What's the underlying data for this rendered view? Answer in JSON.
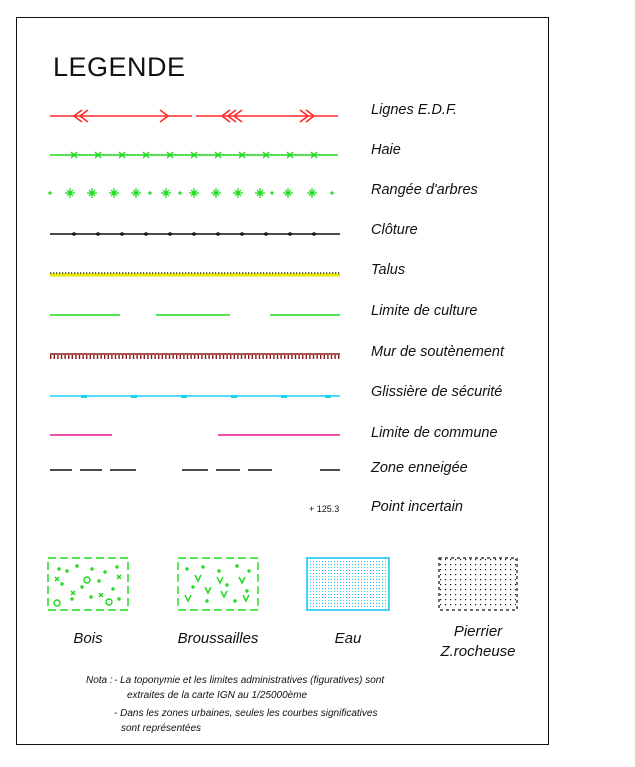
{
  "title": "LEGENDE",
  "legend": [
    {
      "label": "Lignes E.D.F.",
      "symbol": "edf-line",
      "color": "#ff2a2a"
    },
    {
      "label": "Haie",
      "symbol": "hedge",
      "color": "#19d919"
    },
    {
      "label": "Rangée d'arbres",
      "symbol": "tree-row",
      "color": "#19d919"
    },
    {
      "label": "Clôture",
      "symbol": "fence",
      "color": "#111111"
    },
    {
      "label": "Talus",
      "symbol": "embankment",
      "color": "#e8e800"
    },
    {
      "label": "Limite de culture",
      "symbol": "crop-limit",
      "color": "#19d919"
    },
    {
      "label": "Mur de soutènement",
      "symbol": "retaining-wall",
      "color": "#8a1a1a"
    },
    {
      "label": "Glissière de sécurité",
      "symbol": "guardrail",
      "color": "#19d4ee"
    },
    {
      "label": "Limite de commune",
      "symbol": "commune-limit",
      "color": "#ee1a8a"
    },
    {
      "label": "Zone enneigée",
      "symbol": "snow-zone",
      "color": "#111111"
    },
    {
      "label": "Point incertain",
      "symbol": "uncertain-point",
      "value": "+ 125.3"
    }
  ],
  "areas": [
    {
      "label": "Bois",
      "pattern": "wood",
      "color": "#19d919"
    },
    {
      "label": "Broussailles",
      "pattern": "scrub",
      "color": "#19d919"
    },
    {
      "label": "Eau",
      "pattern": "water",
      "color": "#19c8ee"
    },
    {
      "label": "Pierrier Z.rocheuse",
      "pattern": "scree",
      "color": "#111111"
    }
  ],
  "note": {
    "prefix": "Nota :",
    "line1": "- La toponymie et les limites administratives (figuratives) sont",
    "line2": "extraites de la carte IGN au 1/25000ème",
    "line3": "- Dans les zones urbaines, seules les courbes significatives",
    "line4": "sont représentées"
  }
}
